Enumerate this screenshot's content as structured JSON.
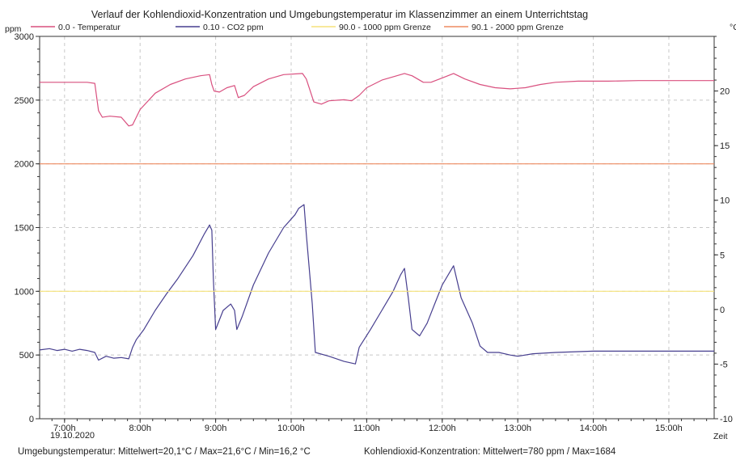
{
  "chart_data": {
    "type": "line",
    "title": "Verlauf der Kohlendioxid-Konzentration und Umgebungstemperatur im Klassenzimmer an einem Unterrichtstag",
    "y_left_label": "ppm",
    "y_right_label": "°C",
    "x_axis_label": "Zeit",
    "date_label": "19.10.2020",
    "y_left_range": [
      0,
      3000
    ],
    "y_left_ticks": [
      "0",
      "500",
      "1000",
      "1500",
      "2000",
      "2500",
      "3000"
    ],
    "y_right_range": [
      -10,
      25
    ],
    "y_right_ticks": [
      "-10",
      "-5",
      "0",
      "5",
      "10",
      "15",
      "20"
    ],
    "x_range": [
      6.67,
      15.6
    ],
    "x_ticks": [
      {
        "x": 7,
        "label": "7:00h"
      },
      {
        "x": 8,
        "label": "8:00h"
      },
      {
        "x": 9,
        "label": "9:00h"
      },
      {
        "x": 10,
        "label": "10:00h"
      },
      {
        "x": 11,
        "label": "11:00h"
      },
      {
        "x": 12,
        "label": "12:00h"
      },
      {
        "x": 13,
        "label": "13:00h"
      },
      {
        "x": 14,
        "label": "14:00h"
      },
      {
        "x": 15,
        "label": "15:00h"
      }
    ],
    "grid": true,
    "legend_position": "top",
    "series": [
      {
        "name": "0.0 - Temperatur",
        "axis": "right",
        "color": "#d9507f",
        "points": [
          [
            6.67,
            20.8
          ],
          [
            7.3,
            20.8
          ],
          [
            7.4,
            20.7
          ],
          [
            7.45,
            18.2
          ],
          [
            7.5,
            17.6
          ],
          [
            7.6,
            17.7
          ],
          [
            7.75,
            17.6
          ],
          [
            7.85,
            16.8
          ],
          [
            7.9,
            16.9
          ],
          [
            8.0,
            18.3
          ],
          [
            8.2,
            19.8
          ],
          [
            8.4,
            20.6
          ],
          [
            8.6,
            21.1
          ],
          [
            8.8,
            21.4
          ],
          [
            8.92,
            21.5
          ],
          [
            8.95,
            20.6
          ],
          [
            8.98,
            20.0
          ],
          [
            9.05,
            19.9
          ],
          [
            9.15,
            20.3
          ],
          [
            9.25,
            20.5
          ],
          [
            9.3,
            19.4
          ],
          [
            9.38,
            19.6
          ],
          [
            9.5,
            20.4
          ],
          [
            9.7,
            21.1
          ],
          [
            9.9,
            21.5
          ],
          [
            10.15,
            21.6
          ],
          [
            10.2,
            21.1
          ],
          [
            10.3,
            19.0
          ],
          [
            10.4,
            18.8
          ],
          [
            10.5,
            19.1
          ],
          [
            10.7,
            19.2
          ],
          [
            10.8,
            19.1
          ],
          [
            10.9,
            19.6
          ],
          [
            11.0,
            20.3
          ],
          [
            11.2,
            21.0
          ],
          [
            11.4,
            21.4
          ],
          [
            11.5,
            21.6
          ],
          [
            11.6,
            21.4
          ],
          [
            11.75,
            20.8
          ],
          [
            11.85,
            20.8
          ],
          [
            12.0,
            21.2
          ],
          [
            12.15,
            21.6
          ],
          [
            12.3,
            21.1
          ],
          [
            12.5,
            20.6
          ],
          [
            12.7,
            20.3
          ],
          [
            12.9,
            20.2
          ],
          [
            13.1,
            20.3
          ],
          [
            13.3,
            20.6
          ],
          [
            13.5,
            20.8
          ],
          [
            13.8,
            20.9
          ],
          [
            14.2,
            20.9
          ],
          [
            14.6,
            20.95
          ],
          [
            15.0,
            20.95
          ],
          [
            15.6,
            20.95
          ]
        ]
      },
      {
        "name": "0.10 - CO2 ppm",
        "axis": "left",
        "color": "#473f8f",
        "points": [
          [
            6.67,
            540
          ],
          [
            6.8,
            550
          ],
          [
            6.9,
            535
          ],
          [
            7.0,
            545
          ],
          [
            7.1,
            530
          ],
          [
            7.2,
            545
          ],
          [
            7.3,
            535
          ],
          [
            7.4,
            520
          ],
          [
            7.45,
            460
          ],
          [
            7.55,
            490
          ],
          [
            7.65,
            475
          ],
          [
            7.75,
            480
          ],
          [
            7.85,
            470
          ],
          [
            7.9,
            560
          ],
          [
            7.95,
            620
          ],
          [
            8.05,
            700
          ],
          [
            8.2,
            850
          ],
          [
            8.35,
            980
          ],
          [
            8.5,
            1100
          ],
          [
            8.7,
            1280
          ],
          [
            8.85,
            1450
          ],
          [
            8.92,
            1520
          ],
          [
            8.95,
            1480
          ],
          [
            8.97,
            1100
          ],
          [
            9.0,
            700
          ],
          [
            9.1,
            850
          ],
          [
            9.2,
            900
          ],
          [
            9.25,
            850
          ],
          [
            9.28,
            700
          ],
          [
            9.35,
            800
          ],
          [
            9.5,
            1050
          ],
          [
            9.7,
            1300
          ],
          [
            9.9,
            1500
          ],
          [
            10.05,
            1600
          ],
          [
            10.1,
            1650
          ],
          [
            10.17,
            1680
          ],
          [
            10.2,
            1450
          ],
          [
            10.28,
            900
          ],
          [
            10.32,
            520
          ],
          [
            10.5,
            490
          ],
          [
            10.7,
            450
          ],
          [
            10.85,
            430
          ],
          [
            10.9,
            560
          ],
          [
            11.05,
            700
          ],
          [
            11.2,
            850
          ],
          [
            11.35,
            1000
          ],
          [
            11.45,
            1130
          ],
          [
            11.5,
            1180
          ],
          [
            11.55,
            950
          ],
          [
            11.6,
            700
          ],
          [
            11.7,
            650
          ],
          [
            11.8,
            750
          ],
          [
            11.9,
            900
          ],
          [
            12.0,
            1050
          ],
          [
            12.1,
            1150
          ],
          [
            12.15,
            1200
          ],
          [
            12.25,
            950
          ],
          [
            12.4,
            750
          ],
          [
            12.5,
            570
          ],
          [
            12.6,
            520
          ],
          [
            12.75,
            520
          ],
          [
            12.9,
            500
          ],
          [
            13.0,
            490
          ],
          [
            13.2,
            510
          ],
          [
            13.5,
            520
          ],
          [
            14.0,
            530
          ],
          [
            14.5,
            530
          ],
          [
            15.0,
            530
          ],
          [
            15.3,
            530
          ],
          [
            15.6,
            530
          ]
        ]
      },
      {
        "name": "90.0 - 1000 ppm Grenze",
        "axis": "left",
        "color": "#f5e27a",
        "points": [
          [
            6.67,
            1000
          ],
          [
            15.6,
            1000
          ]
        ]
      },
      {
        "name": "90.1 - 2000 ppm Grenze",
        "axis": "left",
        "color": "#ee8b61",
        "points": [
          [
            6.67,
            2000
          ],
          [
            15.6,
            2000
          ]
        ]
      }
    ]
  },
  "footer": {
    "temperature_stats": "Umgebungstemperatur: Mittelwert=20,1°C  /  Max=21,6°C  /  Min=16,2 °C",
    "co2_stats": "Kohlendioxid-Konzentration: Mittelwert=780 ppm  /  Max=1684"
  }
}
